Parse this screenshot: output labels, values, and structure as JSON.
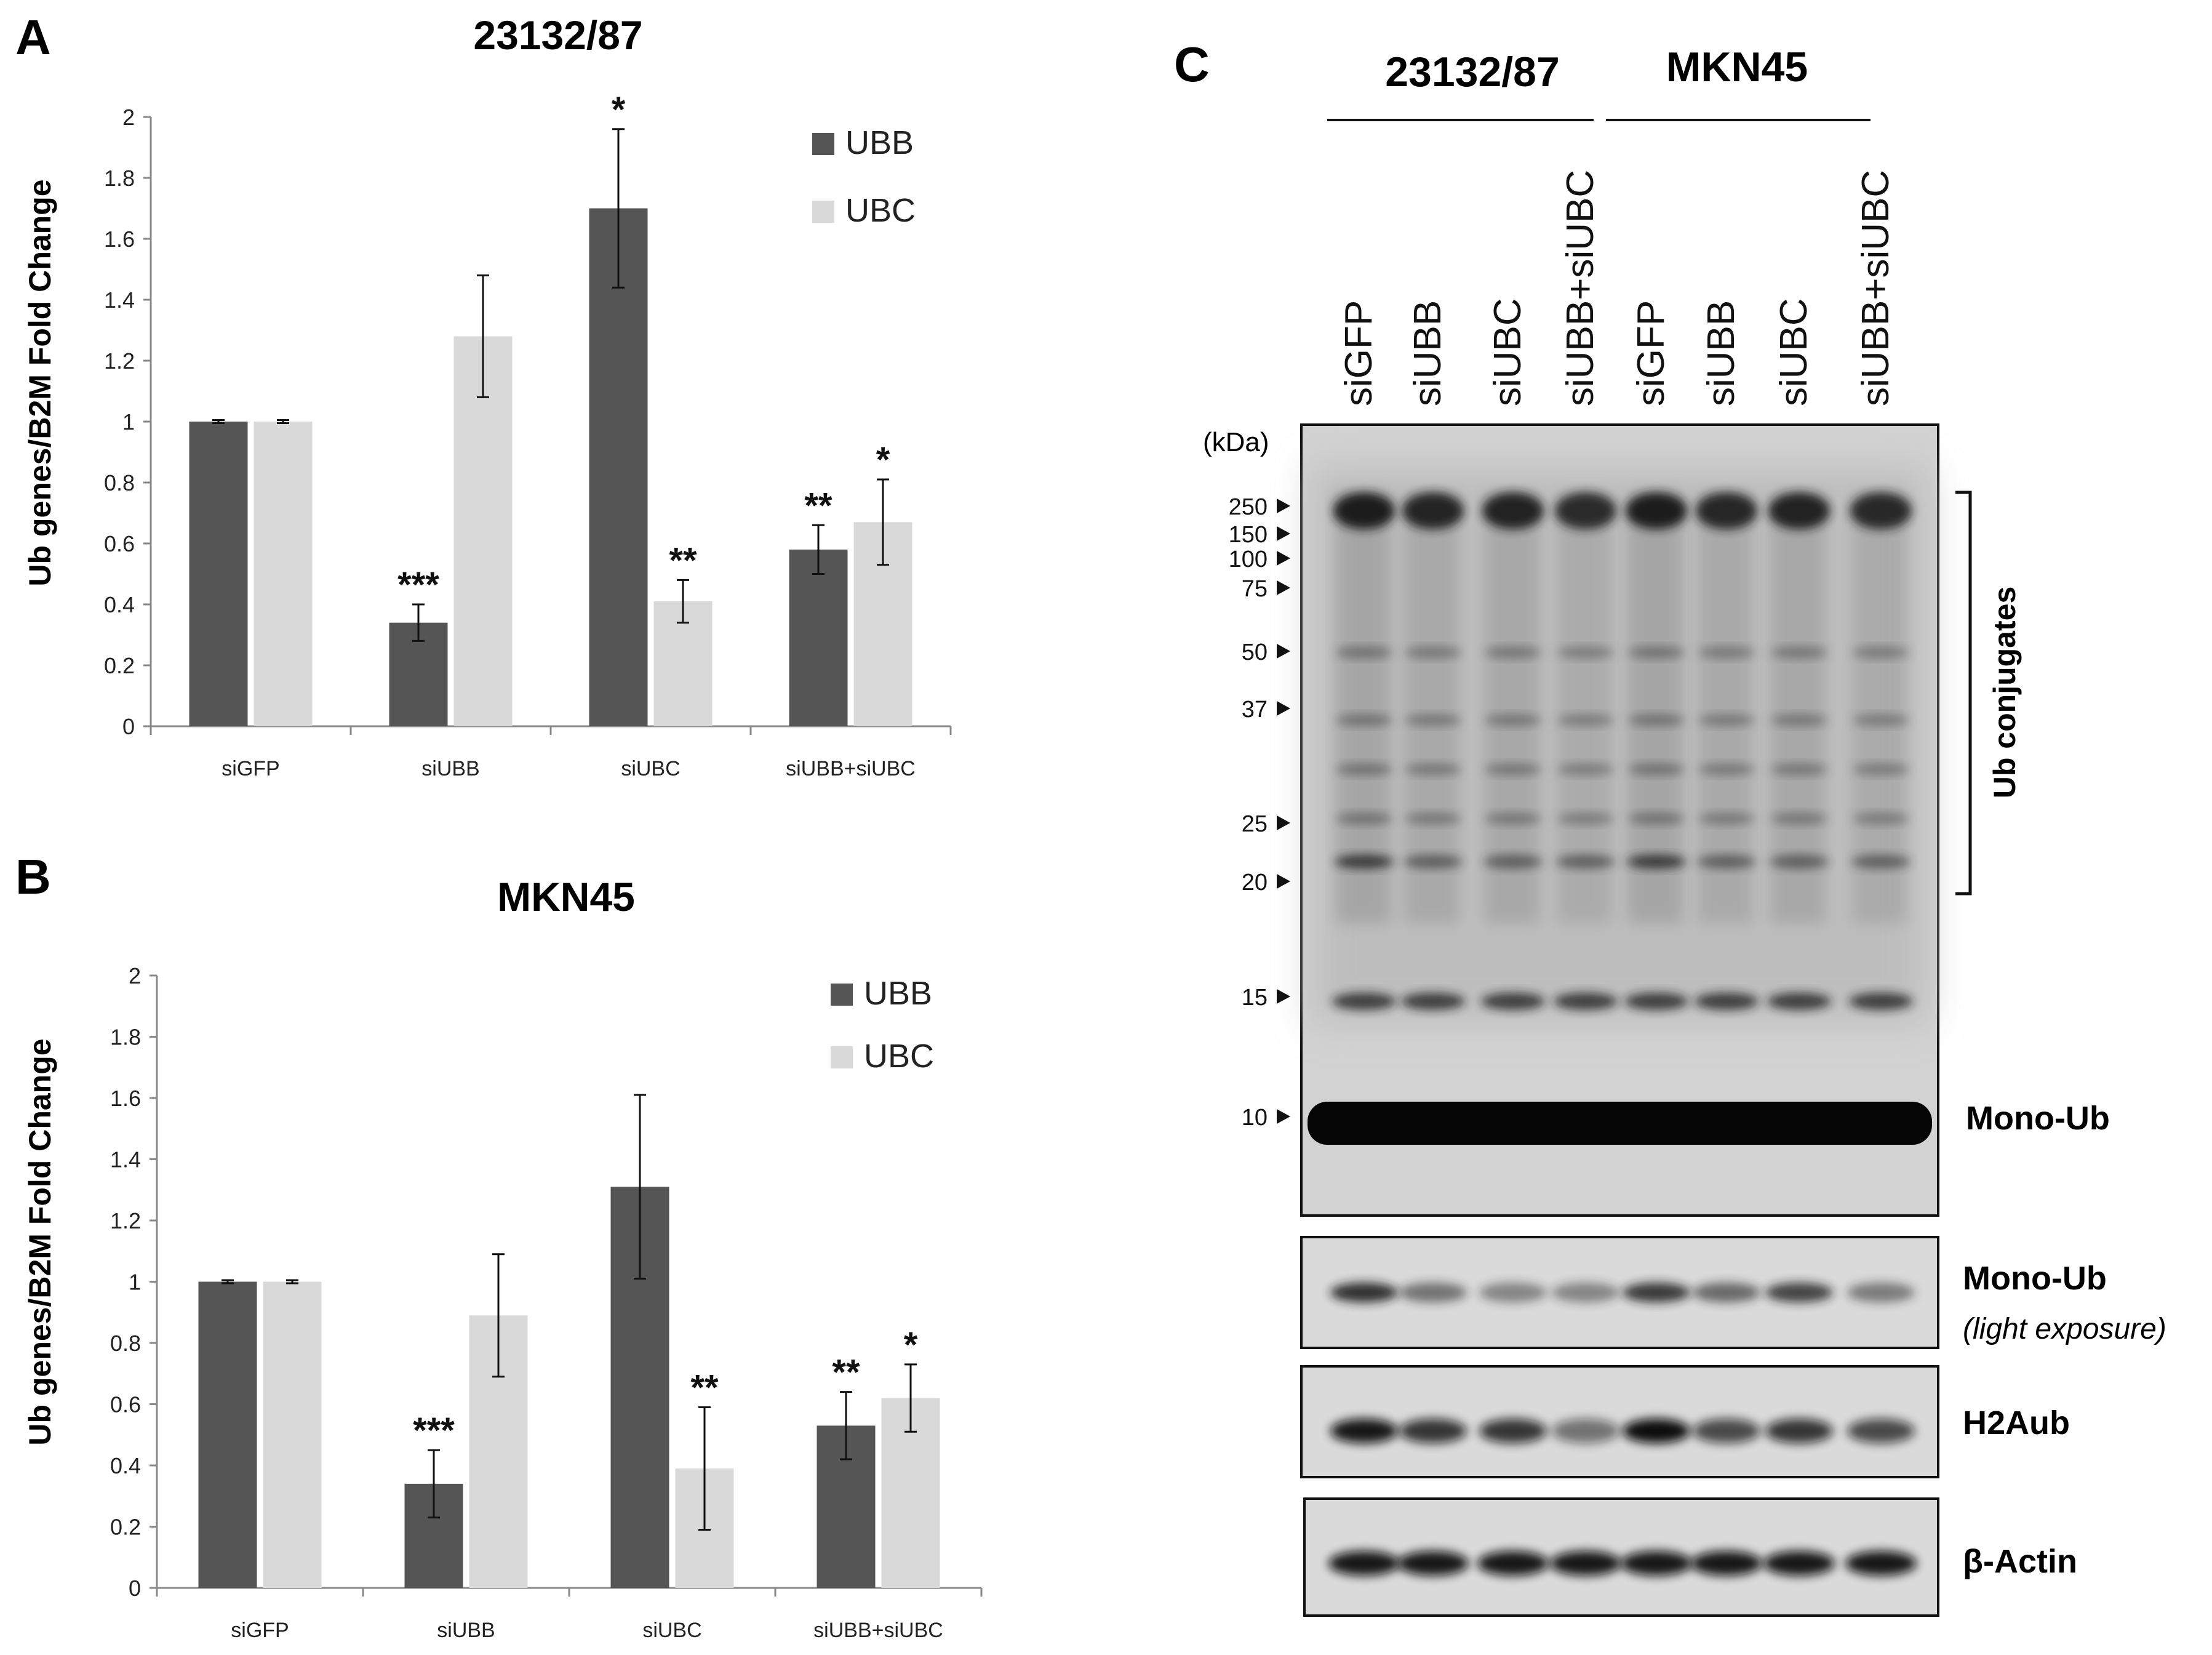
{
  "panel_letters": [
    "A",
    "B",
    "C"
  ],
  "chart_data": [
    {
      "type": "bar",
      "panel": "A",
      "title": "23132/87",
      "ylabel": "Ub genes/B2M Fold Change",
      "xlabel": "",
      "ylim": [
        0,
        2
      ],
      "yticks": [
        "0",
        "0.2",
        "0.4",
        "0.6",
        "0.8",
        "1",
        "1.2",
        "1.4",
        "1.6",
        "1.8",
        "2"
      ],
      "grid": false,
      "legend_position": "top-right",
      "categories": [
        "siGFP",
        "siUBB",
        "siUBC",
        "siUBB+siUBC"
      ],
      "series": [
        {
          "name": "UBB",
          "color": "#555555",
          "values": [
            1.0,
            0.34,
            1.7,
            0.58
          ],
          "errors": [
            0.005,
            0.06,
            0.26,
            0.08
          ],
          "annotations": [
            "",
            "***",
            "*",
            "**"
          ]
        },
        {
          "name": "UBC",
          "color": "#d9d9d9",
          "values": [
            1.0,
            1.28,
            0.41,
            0.67
          ],
          "errors": [
            0.005,
            0.2,
            0.07,
            0.14
          ],
          "annotations": [
            "",
            "",
            "**",
            "*"
          ]
        }
      ]
    },
    {
      "type": "bar",
      "panel": "B",
      "title": "MKN45",
      "ylabel": "Ub genes/B2M Fold Change",
      "xlabel": "",
      "ylim": [
        0,
        2
      ],
      "yticks": [
        "0",
        "0.2",
        "0.4",
        "0.6",
        "0.8",
        "1",
        "1.2",
        "1.4",
        "1.6",
        "1.8",
        "2"
      ],
      "grid": false,
      "legend_position": "top-right",
      "categories": [
        "siGFP",
        "siUBB",
        "siUBC",
        "siUBB+siUBC"
      ],
      "series": [
        {
          "name": "UBB",
          "color": "#555555",
          "values": [
            1.0,
            0.34,
            1.31,
            0.53
          ],
          "errors": [
            0.005,
            0.11,
            0.3,
            0.11
          ],
          "annotations": [
            "",
            "***",
            "",
            "**"
          ]
        },
        {
          "name": "UBC",
          "color": "#d9d9d9",
          "values": [
            1.0,
            0.89,
            0.39,
            0.62
          ],
          "errors": [
            0.005,
            0.2,
            0.2,
            0.11
          ],
          "annotations": [
            "",
            "",
            "**",
            "*"
          ]
        }
      ]
    }
  ],
  "blot": {
    "cell_lines": [
      "23132/87",
      "MKN45"
    ],
    "lanes": [
      "siGFP",
      "siUBB",
      "siUBC",
      "siUBB+siUBC",
      "siGFP",
      "siUBB",
      "siUBC",
      "siUBB+siUBC"
    ],
    "kda_label": "(kDa)",
    "markers": [
      "250",
      "150",
      "100",
      "75",
      "50",
      "37",
      "25",
      "20",
      "15",
      "10"
    ],
    "bracket_label": "Ub conjugates",
    "mono_ub_label": "Mono-Ub",
    "strips": [
      {
        "label": "Mono-Ub",
        "sublabel": "(light exposure)"
      },
      {
        "label": "H2Aub",
        "sublabel": ""
      },
      {
        "label": "β-Actin",
        "sublabel": ""
      }
    ]
  }
}
